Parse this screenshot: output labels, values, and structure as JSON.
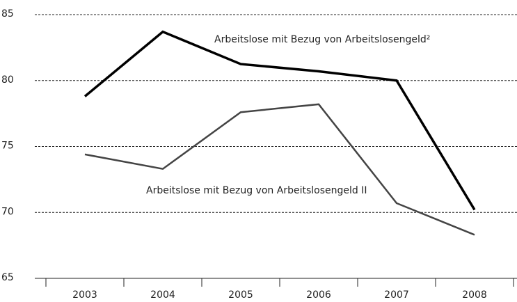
{
  "chart_data": {
    "type": "line",
    "categories": [
      "2003",
      "2004",
      "2005",
      "2006",
      "2007",
      "2008"
    ],
    "series": [
      {
        "name": "Arbeitslose mit Bezug von Arbeitslosengeld²",
        "color": "#000000",
        "values": [
          78.8,
          83.7,
          81.25,
          80.7,
          80.0,
          70.2
        ]
      },
      {
        "name": "Arbeitslose mit Bezug von Arbeitslosengeld II",
        "color": "#444444",
        "values": [
          74.4,
          73.3,
          77.6,
          78.2,
          70.7,
          68.3
        ]
      }
    ],
    "ylim": [
      65,
      85
    ],
    "yticks": [
      65,
      70,
      75,
      80,
      85
    ],
    "grid": true
  }
}
